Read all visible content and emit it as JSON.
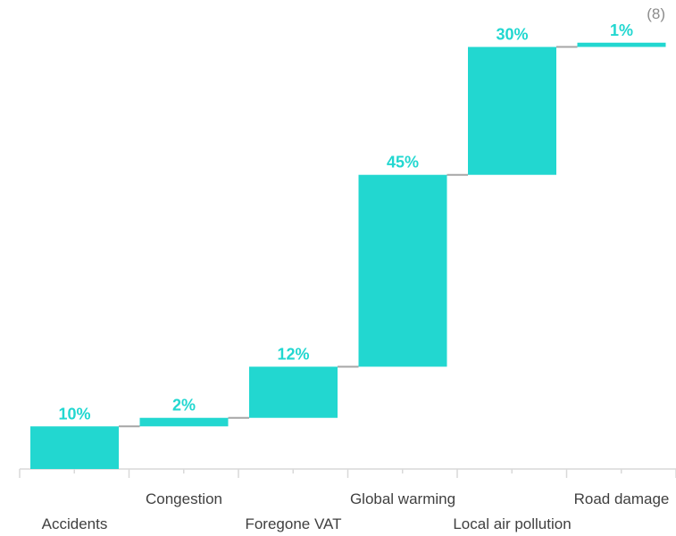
{
  "corner_note": "(8)",
  "colors": {
    "bar": "#22D7D0",
    "connector": "#A6A6A6",
    "axis": "#D9D9D9",
    "text": "#404040"
  },
  "chart_data": {
    "type": "bar",
    "subtype": "waterfall",
    "title": "",
    "xlabel": "",
    "ylabel": "",
    "categories": [
      "Accidents",
      "Congestion",
      "Foregone VAT",
      "Global warming",
      "Local air pollution",
      "Road damage"
    ],
    "values": [
      10,
      2,
      12,
      45,
      30,
      1
    ],
    "value_labels": [
      "10%",
      "2%",
      "12%",
      "45%",
      "30%",
      "1%"
    ],
    "ylim": [
      0,
      101
    ],
    "grid": false,
    "legend": "none"
  }
}
